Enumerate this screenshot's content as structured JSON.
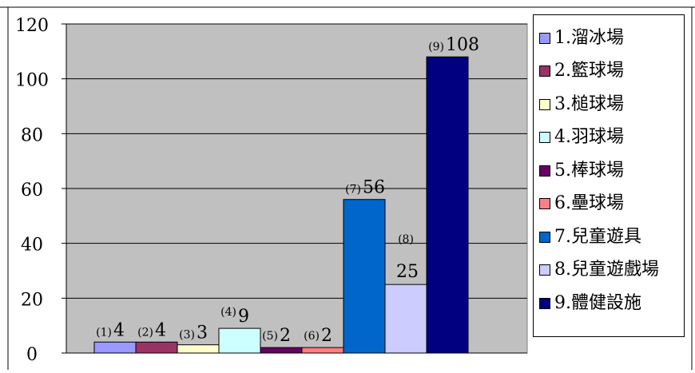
{
  "chart_data": {
    "type": "bar",
    "title": "",
    "xlabel": "",
    "ylabel": "",
    "ylim": [
      0,
      120
    ],
    "yticks": [
      0,
      20,
      40,
      60,
      80,
      100,
      120
    ],
    "ytick_labels": [
      "0",
      "20",
      "40",
      "60",
      "80",
      "100",
      "120"
    ],
    "grid": true,
    "legend_position": "right",
    "plot_background": "#c0c0c0",
    "categories": [
      "1.溜冰場",
      "2.籃球場",
      "3.槌球場",
      "4.羽球場",
      "5.棒球場",
      "6.壘球場",
      "7.兒童遊具",
      "8.兒童遊戲場",
      "9.體健設施"
    ],
    "values": [
      4,
      4,
      3,
      9,
      2,
      2,
      56,
      25,
      108
    ],
    "point_labels": [
      {
        "index": "(1)",
        "value": "4"
      },
      {
        "index": "(2)",
        "value": "4"
      },
      {
        "index": "(3)",
        "value": "3"
      },
      {
        "index": "(4)",
        "value": "9"
      },
      {
        "index": "(5)",
        "value": "2"
      },
      {
        "index": "(6)",
        "value": "2"
      },
      {
        "index": "(7)",
        "value": "56"
      },
      {
        "index": "(8)",
        "value": "25"
      },
      {
        "index": "(9)",
        "value": "108"
      }
    ],
    "colors": [
      "#9999ff",
      "#993366",
      "#ffffcc",
      "#ccffff",
      "#660066",
      "#ff8080",
      "#0066cc",
      "#ccccff",
      "#000080"
    ]
  }
}
